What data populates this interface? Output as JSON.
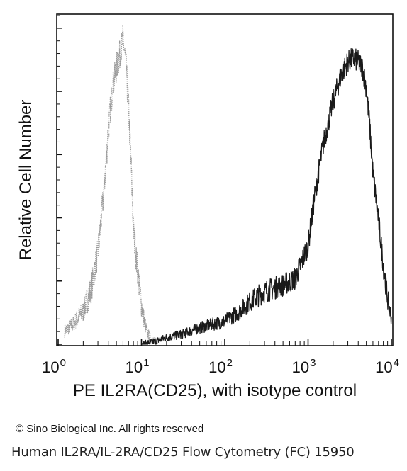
{
  "chart_data": {
    "type": "area",
    "xlabel": "PE IL2RA(CD25), with isotype control",
    "ylabel": "Relative Cell Number",
    "x_scale": "log",
    "xlim": [
      1,
      10000
    ],
    "ylim": [
      0,
      100
    ],
    "x_ticks": [
      {
        "base": "10",
        "exp": "0",
        "value": 1
      },
      {
        "base": "10",
        "exp": "1",
        "value": 10
      },
      {
        "base": "10",
        "exp": "2",
        "value": 100
      },
      {
        "base": "10",
        "exp": "3",
        "value": 1000
      },
      {
        "base": "10",
        "exp": "4",
        "value": 10000
      }
    ],
    "y_tick_labels": "none",
    "grid": false,
    "legend": "none",
    "series": [
      {
        "style": "dotted",
        "color": "#9a9a9a",
        "x": [
          1.2,
          1.5,
          2,
          2.5,
          3,
          3.5,
          4,
          4.5,
          5,
          5.5,
          6,
          6.5,
          7,
          7.5,
          8,
          9,
          10,
          11,
          12,
          13,
          14,
          15,
          16
        ],
        "y": [
          4,
          6,
          10,
          17,
          28,
          45,
          65,
          78,
          84,
          88,
          93,
          85,
          72,
          55,
          35,
          22,
          12,
          6,
          3,
          1.5,
          1,
          0.5,
          0
        ]
      },
      {
        "style": "solid",
        "color": "#1a1a1a",
        "x": [
          10,
          15,
          20,
          30,
          50,
          70,
          100,
          150,
          200,
          300,
          500,
          700,
          1000,
          1200,
          1500,
          2000,
          2500,
          3000,
          3500,
          4000,
          4500,
          5000,
          5500,
          6000,
          7000,
          8000,
          9000,
          10000
        ],
        "y": [
          0,
          1,
          2,
          3,
          5,
          6,
          7,
          10,
          13,
          16,
          18,
          20,
          30,
          45,
          60,
          74,
          82,
          86,
          87,
          86,
          84,
          78,
          66,
          52,
          38,
          24,
          14,
          8
        ]
      }
    ]
  },
  "footer": {
    "copyright": "© Sino Biological Inc. All rights reserved",
    "caption": "Human IL2RA/IL-2RA/CD25 Flow Cytometry (FC) 15950"
  }
}
